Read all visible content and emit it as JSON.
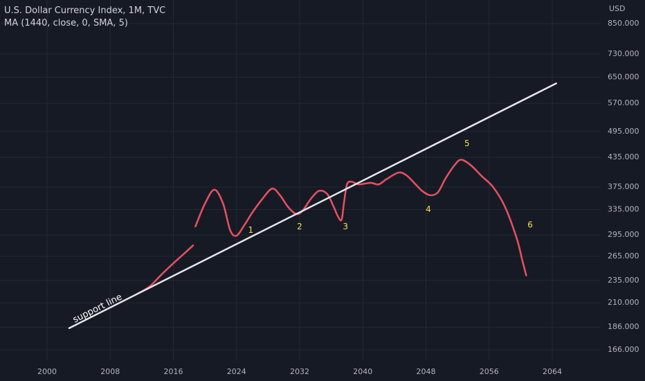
{
  "chart_data": {
    "type": "line",
    "title": "U.S. Dollar Currency Index, 1M, TVC",
    "subtitle": "MA (1440, close, 0, SMA, 5)",
    "y_unit": "USD",
    "y_scale": "log",
    "grid": true,
    "xlim": [
      1995,
      2072
    ],
    "ylim": [
      155,
      1000
    ],
    "x_ticks": [
      2000,
      2008,
      2016,
      2024,
      2032,
      2040,
      2048,
      2056,
      2064
    ],
    "x_tick_labels": [
      "2000",
      "2008",
      "2016",
      "2024",
      "2032",
      "2040",
      "2048",
      "2056",
      "2064"
    ],
    "y_ticks": [
      166,
      186,
      210,
      235,
      265,
      295,
      335,
      375,
      435,
      495,
      570,
      650,
      730,
      850
    ],
    "y_tick_labels": [
      "166.000",
      "186.000",
      "210.000",
      "235.000",
      "265.000",
      "295.000",
      "335.000",
      "375.000",
      "435.000",
      "495.000",
      "570.000",
      "650.000",
      "730.000",
      "850.000"
    ],
    "series": [
      {
        "color": "#e4505f",
        "x": [
          2011.5,
          2013.0,
          2014.5,
          2016.0,
          2017.5,
          2018.5
        ],
        "y": [
          220,
          228,
          242,
          256,
          270,
          280
        ]
      },
      {
        "color": "#e4505f",
        "x": [
          2018.8,
          2020.0,
          2021.2,
          2022.3,
          2023.2,
          2024.0,
          2025.0,
          2026.0,
          2027.2,
          2028.5,
          2029.5,
          2030.5,
          2031.5,
          2032.3,
          2033.5,
          2034.5,
          2035.5,
          2036.3,
          2036.8,
          2037.3,
          2037.6,
          2038.0,
          2038.6,
          2039.5,
          2041.0,
          2042.0,
          2043.0,
          2044.5,
          2045.5,
          2046.5,
          2047.5,
          2048.5,
          2049.5,
          2050.5,
          2051.7,
          2052.5,
          2053.7,
          2055.0,
          2056.5,
          2058.0,
          2059.5,
          2060.2,
          2060.7
        ],
        "y": [
          308,
          345,
          370,
          345,
          302,
          294,
          310,
          330,
          352,
          372,
          360,
          340,
          328,
          332,
          355,
          368,
          362,
          340,
          325,
          318,
          345,
          380,
          385,
          380,
          383,
          380,
          390,
          403,
          398,
          383,
          368,
          360,
          365,
          392,
          420,
          430,
          418,
          397,
          375,
          340,
          290,
          260,
          241
        ]
      },
      {
        "color": "#e6e6ec",
        "x": [
          2002.8,
          2064.5
        ],
        "y": [
          185,
          630
        ]
      }
    ],
    "annotations": [
      {
        "text": "support line",
        "x": 2003.5,
        "y": 190,
        "color": "#ffffff"
      },
      {
        "text": "1",
        "x": 2025.8,
        "y": 302,
        "color": "#f2e14c"
      },
      {
        "text": "2",
        "x": 2032.0,
        "y": 307,
        "color": "#f2e14c"
      },
      {
        "text": "3",
        "x": 2037.8,
        "y": 307,
        "color": "#f2e14c"
      },
      {
        "text": "4",
        "x": 2048.3,
        "y": 335,
        "color": "#f2e14c"
      },
      {
        "text": "5",
        "x": 2053.2,
        "y": 466,
        "color": "#f2e14c"
      },
      {
        "text": "6",
        "x": 2061.2,
        "y": 310,
        "color": "#f2e14c"
      }
    ],
    "colors": {
      "background": "#161a25",
      "grid": "#242834",
      "axis_text": "#b2b5be",
      "legend_text": "#d1d4dc"
    }
  }
}
